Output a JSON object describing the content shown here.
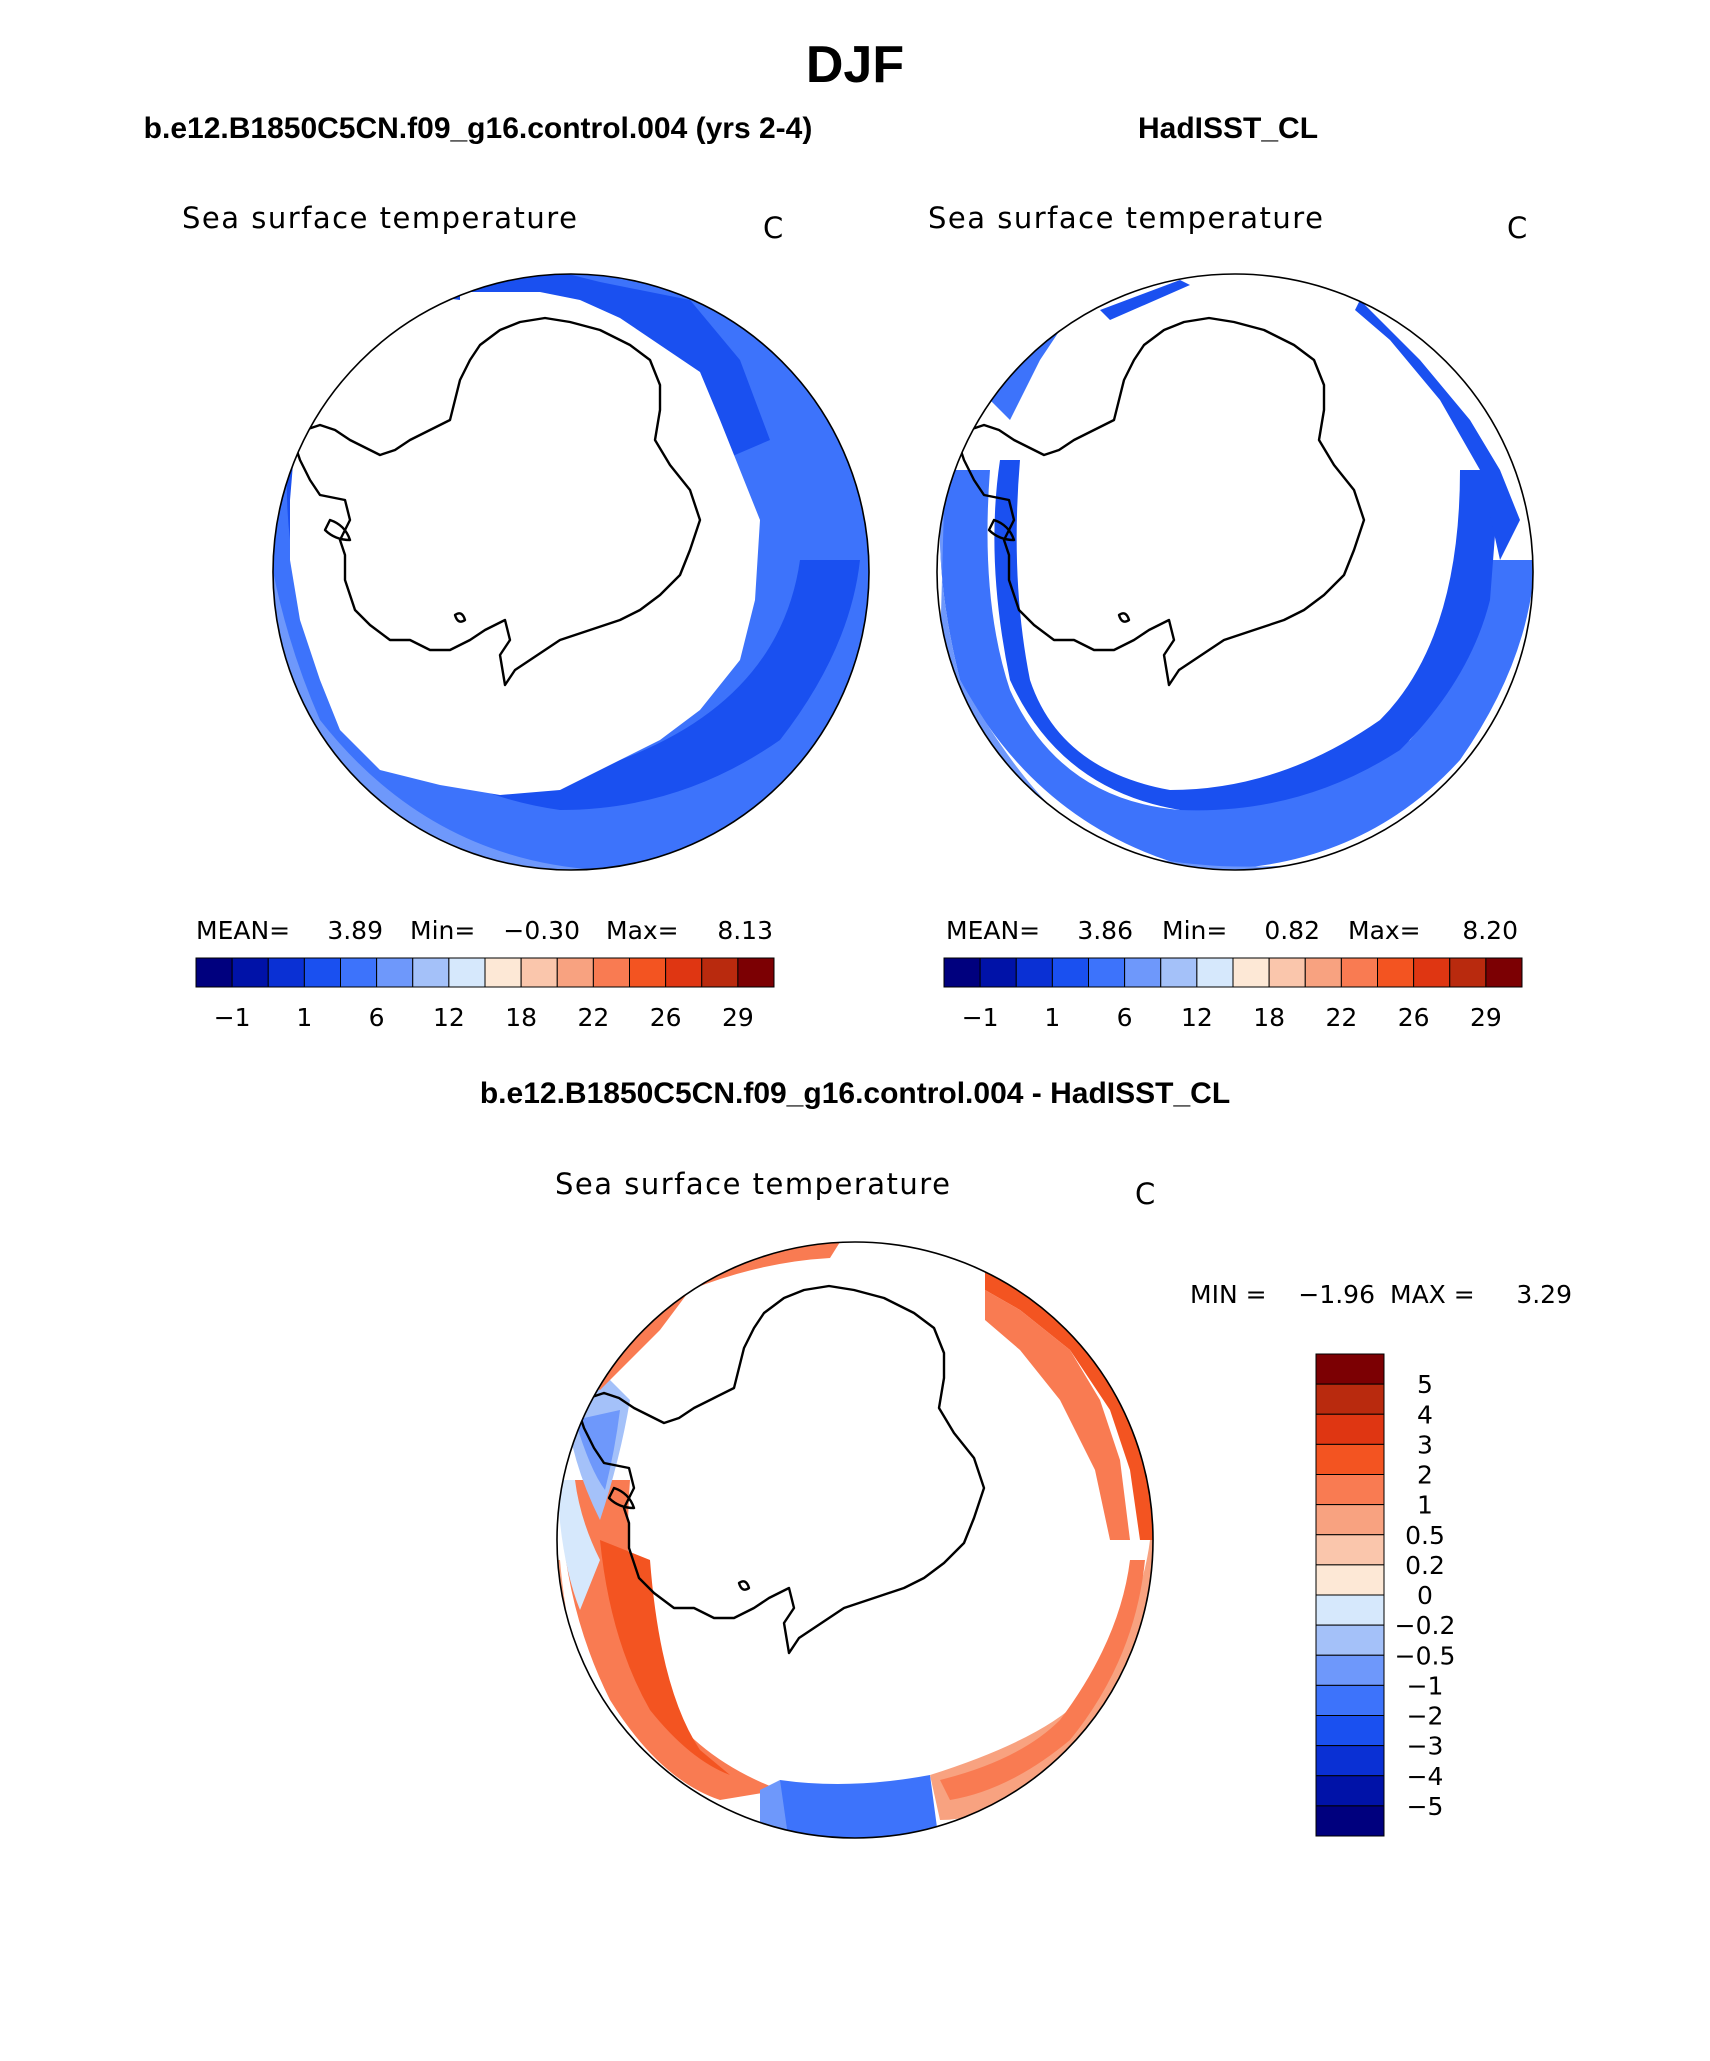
{
  "figure": {
    "season": "DJF",
    "left_title": "b.e12.B1850C5CN.f09_g16.control.004 (yrs 2-4)",
    "right_title": "HadISST_CL",
    "diff_title": "b.e12.B1850C5CN.f09_g16.control.004 - HadISST_CL"
  },
  "panels": {
    "left": {
      "variable": "Sea surface temperature",
      "units": "C",
      "stats": {
        "mean_label": "MEAN=",
        "mean": "3.89",
        "min_label": "Min=",
        "min": "−0.30",
        "max_label": "Max=",
        "max": "8.13"
      }
    },
    "right": {
      "variable": "Sea surface temperature",
      "units": "C",
      "stats": {
        "mean_label": "MEAN=",
        "mean": "3.86",
        "min_label": "Min=",
        "min": "0.82",
        "max_label": "Max=",
        "max": "8.20"
      }
    },
    "diff": {
      "variable": "Sea surface temperature",
      "units": "C",
      "min_label": "MIN =",
      "min": "−1.96",
      "max_label": "MAX =",
      "max": "3.29"
    }
  },
  "colorbars": {
    "abs_colors": [
      "#00007e",
      "#0012a8",
      "#0a30d4",
      "#1a50f0",
      "#3d73fb",
      "#6e98fb",
      "#a4c1f9",
      "#d6e8fc",
      "#fde8d6",
      "#fac6ac",
      "#f8a280",
      "#f97b52",
      "#f35421",
      "#df3612",
      "#b92a0e",
      "#7c0003"
    ],
    "abs_ticks": [
      "−1",
      "1",
      "6",
      "12",
      "18",
      "22",
      "26",
      "29"
    ],
    "diff_colors": [
      "#7c0003",
      "#b92a0e",
      "#df3612",
      "#f35421",
      "#f97b52",
      "#f8a280",
      "#fac6ac",
      "#fde8d6",
      "#d6e8fc",
      "#a4c1f9",
      "#6e98fb",
      "#3d73fb",
      "#1a50f0",
      "#0a30d4",
      "#0012a8",
      "#00007e"
    ],
    "diff_ticks": [
      "5",
      "4",
      "3",
      "2",
      "1",
      "0.5",
      "0.2",
      "0",
      "−0.2",
      "−0.5",
      "−1",
      "−2",
      "−3",
      "−4",
      "−5"
    ]
  },
  "chart_data": [
    {
      "type": "heatmap",
      "title": "b.e12.B1850C5CN.f09_g16.control.004 (yrs 2-4)",
      "variable": "Sea surface temperature",
      "units": "C",
      "projection": "south polar stereographic",
      "mean": 3.89,
      "min": -0.3,
      "max": 8.13,
      "levels": [
        -1,
        1,
        6,
        12,
        18,
        22,
        26,
        29
      ]
    },
    {
      "type": "heatmap",
      "title": "HadISST_CL",
      "variable": "Sea surface temperature",
      "units": "C",
      "projection": "south polar stereographic",
      "mean": 3.86,
      "min": 0.82,
      "max": 8.2,
      "levels": [
        -1,
        1,
        6,
        12,
        18,
        22,
        26,
        29
      ]
    },
    {
      "type": "heatmap",
      "title": "b.e12.B1850C5CN.f09_g16.control.004 - HadISST_CL",
      "variable": "Sea surface temperature",
      "units": "C",
      "projection": "south polar stereographic",
      "min": -1.96,
      "max": 3.29,
      "levels": [
        -5,
        -4,
        -3,
        -2,
        -1,
        -0.5,
        -0.2,
        0,
        0.2,
        0.5,
        1,
        2,
        3,
        4,
        5
      ]
    }
  ]
}
